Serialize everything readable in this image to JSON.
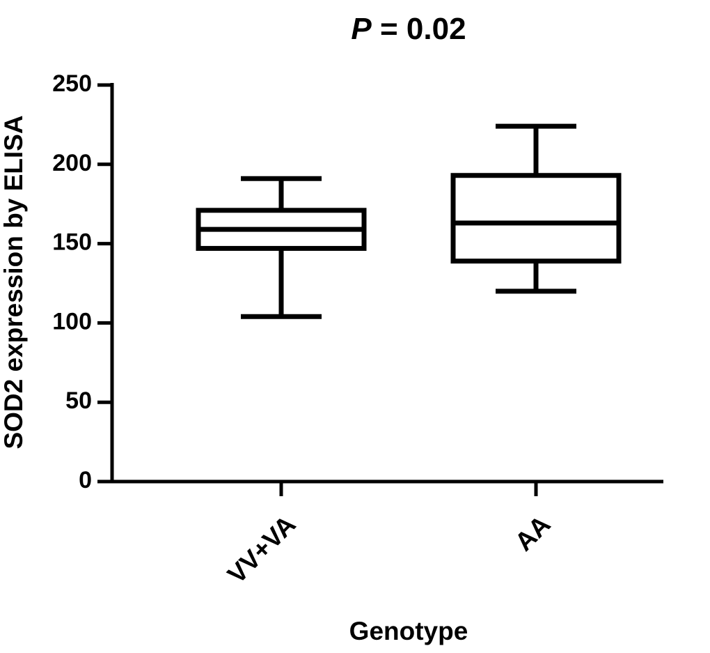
{
  "chart_data": {
    "type": "box",
    "title_prefix": "P",
    "title_rest": " = 0.02",
    "xlabel": "Genotype",
    "ylabel": "SOD2 expression by ELISA",
    "ylim": [
      0,
      250
    ],
    "yticks": [
      "0",
      "50",
      "100",
      "150",
      "200",
      "250"
    ],
    "categories": [
      "VV+VA",
      "AA"
    ],
    "boxes": [
      {
        "category": "VV+VA",
        "min": 104,
        "q1": 147,
        "median": 159,
        "q3": 171,
        "max": 191
      },
      {
        "category": "AA",
        "min": 120,
        "q1": 139,
        "median": 163,
        "q3": 193,
        "max": 224
      }
    ],
    "grid": false,
    "legend": "none"
  }
}
